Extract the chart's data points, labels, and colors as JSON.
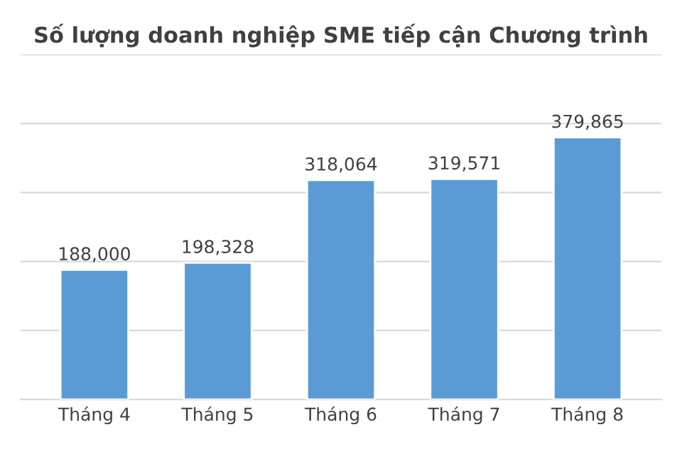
{
  "chart_data": {
    "type": "bar",
    "title": "Số lượng doanh nghiệp SME tiếp cận Chương trình",
    "categories": [
      "Tháng 4",
      "Tháng 5",
      "Tháng 6",
      "Tháng 7",
      "Tháng 8"
    ],
    "values": [
      188000,
      198328,
      318064,
      319571,
      379865
    ],
    "value_labels": [
      "188,000",
      "198,328",
      "318,064",
      "319,571",
      "379,865"
    ],
    "color": "#5b9bd5",
    "ylim": [
      0,
      500000
    ],
    "yticks": [
      {
        "value": 0,
        "label": null
      },
      {
        "value": 100000,
        "label": null
      },
      {
        "value": 200000,
        "label": null
      },
      {
        "value": 300000,
        "label": null
      },
      {
        "value": 400000,
        "label": null
      },
      {
        "value": 500000,
        "label": null
      }
    ],
    "grid": "y",
    "tick_labels": "x",
    "legend": false
  }
}
